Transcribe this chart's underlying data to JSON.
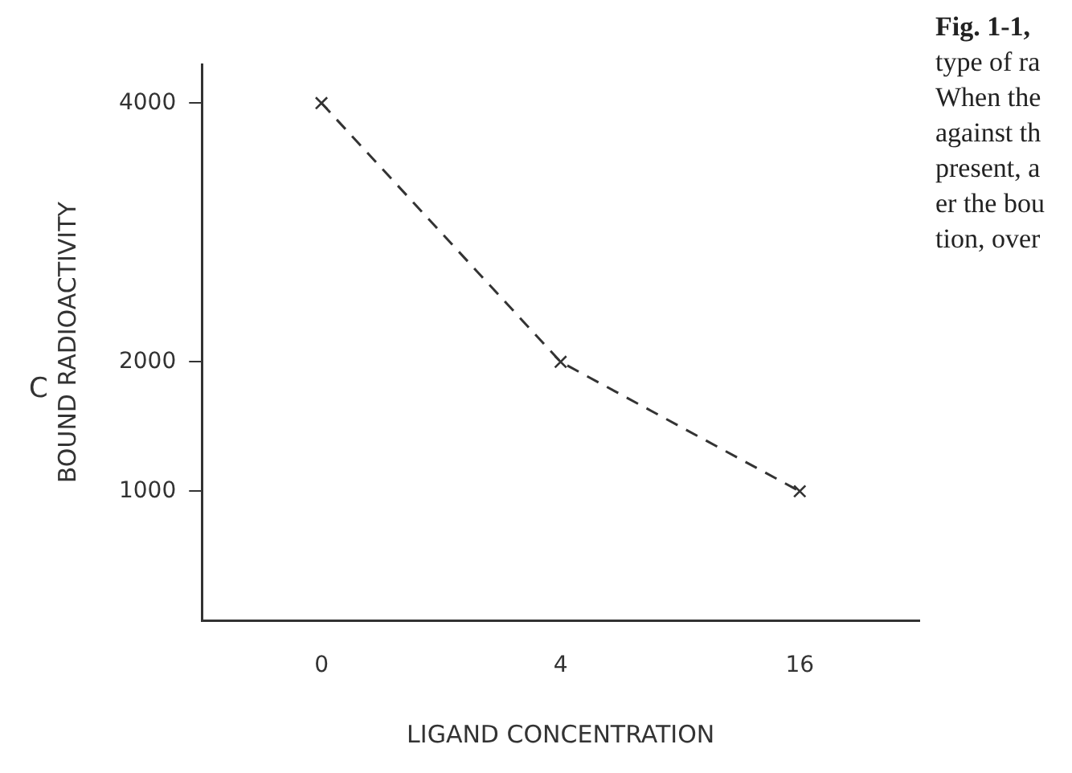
{
  "chart_data": {
    "type": "line",
    "xlabel": "LIGAND CONCENTRATION",
    "ylabel": "BOUND RADIOACTIVITY",
    "categories": [
      "0",
      "4",
      "16"
    ],
    "series": [
      {
        "color": "#333333",
        "values": [
          4000,
          2000,
          1000
        ]
      }
    ],
    "ylim": [
      0,
      4300
    ],
    "yticks": [
      1000,
      2000,
      4000
    ],
    "grid": false,
    "legend": false,
    "marker": "cross",
    "line_style": "dashed",
    "annotations": [
      "C",
      "Fig. 1-1,",
      "type of ra",
      "When the",
      "against th",
      "present, a",
      "er the bou",
      "tion, over"
    ]
  }
}
